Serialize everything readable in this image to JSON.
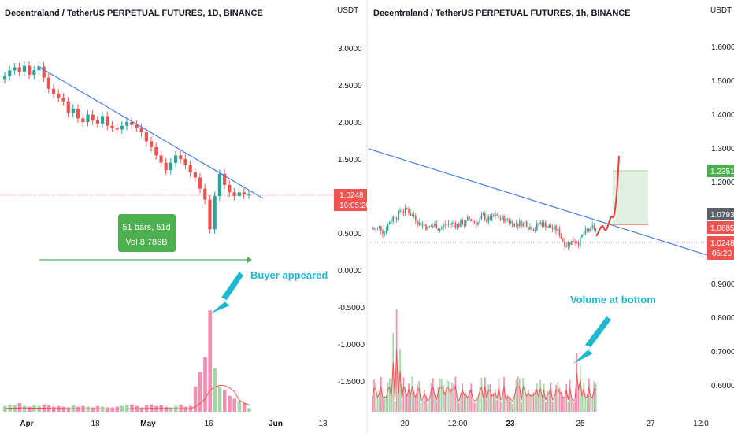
{
  "colors": {
    "up": "#26a69a",
    "down": "#ef5350",
    "vol_up": "#a5d6a7",
    "vol_down": "#f48fb1",
    "trendline": "#4a7fe3",
    "annotation": "#1eb8cf",
    "measure": "#4caf50",
    "price_badge": "#ef5350",
    "target_badge": "#4caf50",
    "gray_badge": "#5d606b",
    "forecast": "#ef3b3b"
  },
  "left": {
    "title": "Decentraland / TetherUS PERPETUAL FUTURES, 1D, BINANCE",
    "axis_unit": "USDT",
    "y_ticks": [
      "3.0000",
      "2.5000",
      "2.0000",
      "1.5000",
      "1.0000",
      "0.5000",
      "0.0000",
      "-0.5000",
      "-1.0000",
      "-1.5000"
    ],
    "x_ticks": [
      {
        "label": "Apr",
        "bold": true
      },
      {
        "label": "18",
        "bold": false
      },
      {
        "label": "May",
        "bold": true
      },
      {
        "label": "16",
        "bold": false
      },
      {
        "label": "Jun",
        "bold": true
      },
      {
        "label": "13",
        "bold": false
      }
    ],
    "price_badge": {
      "price": "1.0248",
      "countdown": "16:05:20"
    },
    "measure": {
      "line1": "51 bars, 51d",
      "line2": "Vol 8.786B"
    },
    "annotation": "Buyer appeared"
  },
  "right": {
    "title": "Decentraland / TetherUS PERPETUAL FUTURES, 1h, BINANCE",
    "axis_unit": "USDT",
    "y_ticks": [
      "1.6000",
      "1.5000",
      "1.4000",
      "1.3000",
      "1.2000",
      "1.1000",
      "1.0000",
      "0.9000",
      "0.8000",
      "0.7000",
      "0.6000"
    ],
    "x_ticks": [
      {
        "label": "20",
        "bold": false
      },
      {
        "label": "12:00",
        "bold": false
      },
      {
        "label": "23",
        "bold": true
      },
      {
        "label": "25",
        "bold": false
      },
      {
        "label": "27",
        "bold": false
      },
      {
        "label": "12:0",
        "bold": false
      }
    ],
    "badges": {
      "target": "1.2351",
      "gray": "1.0793",
      "entry": "1.0685",
      "price": "1.0248",
      "countdown": "05:20"
    },
    "annotation": "Volume at bottom"
  },
  "chart_data": [
    {
      "type": "candlestick",
      "title": "Decentraland / TetherUS PERPETUAL FUTURES, 1D, BINANCE",
      "ylabel": "USDT",
      "ylim": [
        -1.8,
        3.3
      ],
      "x_start": "Mar 25",
      "close": [
        2.62,
        2.7,
        2.74,
        2.68,
        2.76,
        2.64,
        2.7,
        2.75,
        2.6,
        2.45,
        2.38,
        2.33,
        2.28,
        2.12,
        2.18,
        2.05,
        2.0,
        2.1,
        2.02,
        1.98,
        2.08,
        1.95,
        1.92,
        1.9,
        1.95,
        2.0,
        1.96,
        1.92,
        1.86,
        1.74,
        1.66,
        1.55,
        1.45,
        1.35,
        1.45,
        1.55,
        1.5,
        1.42,
        1.32,
        1.25,
        1.1,
        0.95,
        0.55,
        1.0,
        1.3,
        1.15,
        1.05,
        1.0,
        1.05,
        1.02,
        1.02
      ],
      "volume": [
        0.08,
        0.1,
        0.09,
        0.12,
        0.08,
        0.07,
        0.09,
        0.08,
        0.1,
        0.09,
        0.07,
        0.08,
        0.07,
        0.06,
        0.09,
        0.07,
        0.08,
        0.07,
        0.06,
        0.08,
        0.07,
        0.06,
        0.06,
        0.07,
        0.08,
        0.09,
        0.1,
        0.08,
        0.06,
        0.09,
        0.1,
        0.08,
        0.09,
        0.07,
        0.06,
        0.08,
        0.1,
        0.07,
        0.08,
        0.35,
        0.55,
        0.75,
        1.4,
        0.6,
        0.35,
        0.3,
        0.22,
        0.18,
        0.15,
        0.12,
        0.05
      ],
      "volume_ma": true,
      "annotations": [
        "51 bars, 51d",
        "Vol 8.786B",
        "Buyer appeared"
      ]
    },
    {
      "type": "candlestick",
      "title": "Decentraland / TetherUS PERPETUAL FUTURES, 1h, BINANCE",
      "ylabel": "USDT",
      "ylim": [
        0.55,
        1.65
      ],
      "trendline": {
        "from": 1.29,
        "to": 0.992
      },
      "levels": {
        "target": 1.2351,
        "gray": 1.0793,
        "entry": 1.0685,
        "price": 1.0248
      },
      "forecast": [
        1.065,
        1.08,
        1.07,
        1.12,
        1.28
      ],
      "annotations": [
        "Volume at bottom"
      ]
    }
  ]
}
